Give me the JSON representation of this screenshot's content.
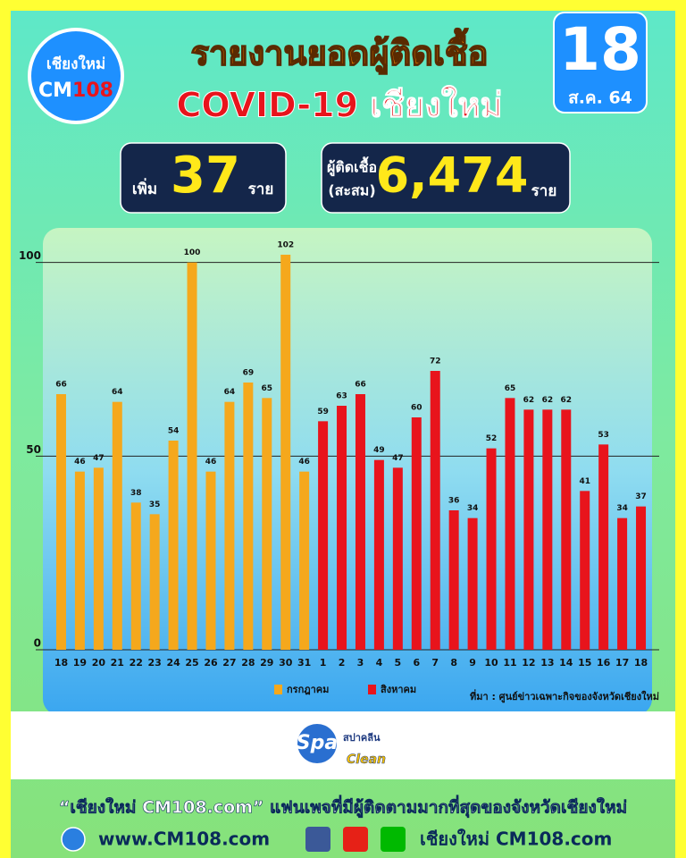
{
  "header": {
    "logo_top": "เชียงใหม่",
    "logo_cm": "CM",
    "logo_num": "108",
    "title_line1": "รายงานยอดผู้ติดเชื้อ",
    "title_line2": "COVID-19 เชียงใหม่",
    "day": "18",
    "month_year": "ส.ค. 64"
  },
  "summary": {
    "new_label": "เพิ่ม",
    "new_cases": "37",
    "new_unit": "ราย",
    "total_label1": "ผู้ติดเชื้อ",
    "total_label2": "(สะสม)",
    "total_cases": "6,474",
    "total_unit": "ราย"
  },
  "chart_data": {
    "type": "bar",
    "categories": [
      "18",
      "19",
      "20",
      "21",
      "22",
      "23",
      "24",
      "25",
      "26",
      "27",
      "28",
      "29",
      "30",
      "31",
      "1",
      "2",
      "3",
      "4",
      "5",
      "6",
      "7",
      "8",
      "9",
      "10",
      "11",
      "12",
      "13",
      "14",
      "15",
      "16",
      "17",
      "18"
    ],
    "series": [
      {
        "name": "กรกฎาคม",
        "color": "#f5a81c",
        "values": [
          66,
          46,
          47,
          64,
          38,
          35,
          54,
          100,
          46,
          64,
          69,
          65,
          102,
          46,
          null,
          null,
          null,
          null,
          null,
          null,
          null,
          null,
          null,
          null,
          null,
          null,
          null,
          null,
          null,
          null,
          null,
          null
        ]
      },
      {
        "name": "สิงหาคม",
        "color": "#e8141c",
        "values": [
          null,
          null,
          null,
          null,
          null,
          null,
          null,
          null,
          null,
          null,
          null,
          null,
          null,
          null,
          59,
          63,
          66,
          49,
          47,
          60,
          72,
          36,
          34,
          52,
          65,
          62,
          62,
          62,
          41,
          53,
          34,
          37
        ]
      }
    ],
    "ylim": [
      0,
      108
    ],
    "yticks": [
      0,
      50,
      100
    ],
    "grid": true,
    "source": "ที่มา : ศูนย์ข่าวเฉพาะกิจของจังหวัดเชียงใหม่"
  },
  "sponsor": {
    "brand": "Spa",
    "thai": "สปาคลีน",
    "clean": "Clean"
  },
  "footer": {
    "tagline": "“เชียงใหม่ CM108.com” แฟนเพจที่มีผู้ติดตามมากที่สุดของจังหวัดเชียงใหม่",
    "website": "www.CM108.com",
    "page": "เชียงใหม่ CM108.com"
  }
}
